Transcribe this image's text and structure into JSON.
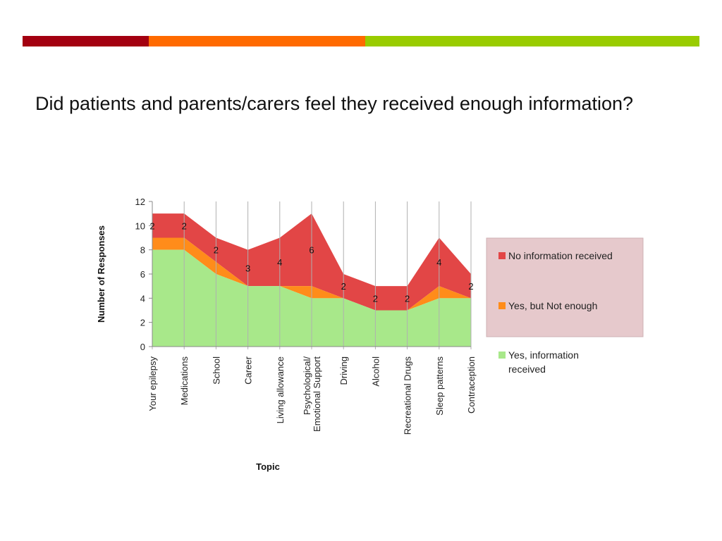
{
  "colors": {
    "bar_red": "#a30010",
    "bar_orange": "#ff6a00",
    "bar_green": "#99cc00",
    "no_info": "#e24646",
    "not_enough": "#ff8c1a",
    "yes_info": "#a8e88a",
    "legend_bg": "#e6c9cc",
    "gridline": "#b0b0b0"
  },
  "slide": {
    "title": "Did patients and parents/carers feel they received enough information?"
  },
  "chart_data": {
    "type": "area",
    "stacked": true,
    "xlabel": "Topic",
    "ylabel": "Number of Responses",
    "ylim": [
      0,
      12
    ],
    "yticks": [
      0,
      2,
      4,
      6,
      8,
      10,
      12
    ],
    "grid": "vertical",
    "legend_position": "right",
    "categories": [
      "Your epilepsy",
      "Medications",
      "School",
      "Career",
      "Living allowance",
      "Psychological/ Emotional Support",
      "Driving",
      "Alcohol",
      "Recreational Drugs",
      "Sleep patterns",
      "Contraception"
    ],
    "series": [
      {
        "name": "Yes, information received",
        "color_key": "yes_info",
        "values": [
          8,
          8,
          6,
          5,
          5,
          4,
          4,
          3,
          3,
          4,
          4
        ]
      },
      {
        "name": "Yes, but Not enough",
        "color_key": "not_enough",
        "values": [
          1,
          1,
          1,
          0,
          0,
          1,
          0,
          0,
          0,
          1,
          0
        ]
      },
      {
        "name": "No information received",
        "color_key": "no_info",
        "values": [
          2,
          2,
          2,
          3,
          4,
          6,
          2,
          2,
          2,
          4,
          2
        ]
      }
    ],
    "data_labels": [
      "2",
      "2",
      "2",
      "3",
      "4",
      "6",
      "2",
      "2",
      "2",
      "4",
      "2"
    ]
  }
}
